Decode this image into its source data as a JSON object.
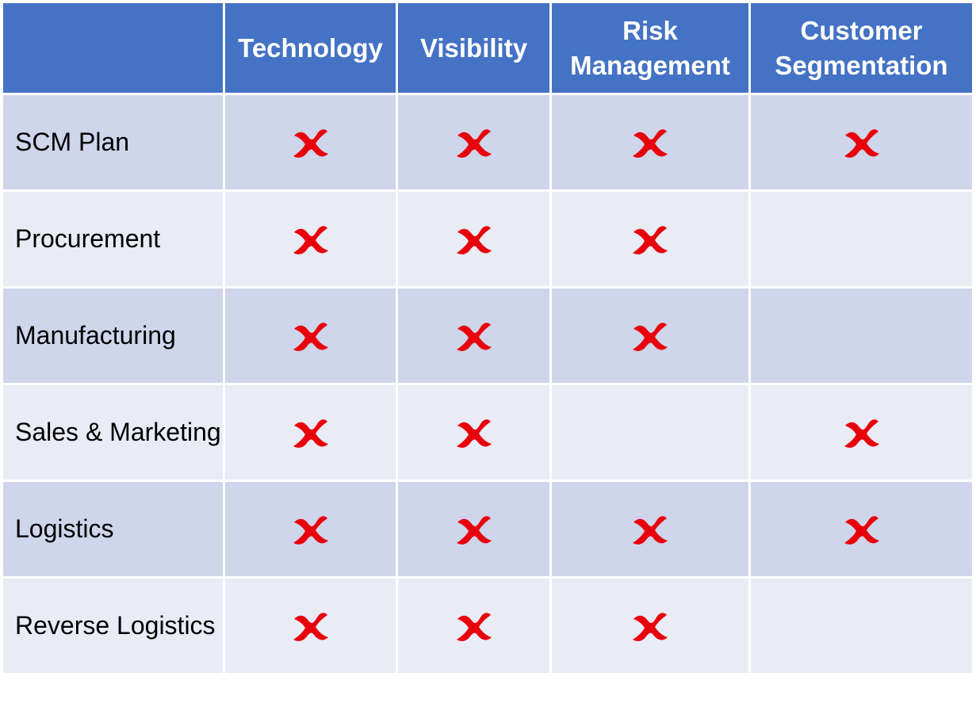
{
  "colors": {
    "header": "#4472c4",
    "row_dark": "#cfd5ea",
    "row_light": "#e9ebf5",
    "mark": "#e8000b"
  },
  "columns": [
    "Technology",
    "Visibility",
    "Risk Management",
    "Customer Segmentation"
  ],
  "rows": [
    {
      "label": "SCM Plan",
      "marks": [
        true,
        true,
        true,
        true
      ]
    },
    {
      "label": "Procurement",
      "marks": [
        true,
        true,
        true,
        false
      ]
    },
    {
      "label": "Manufacturing",
      "marks": [
        true,
        true,
        true,
        false
      ]
    },
    {
      "label": "Sales & Marketing",
      "marks": [
        true,
        true,
        false,
        true
      ]
    },
    {
      "label": "Logistics",
      "marks": [
        true,
        true,
        true,
        true
      ]
    },
    {
      "label": "Reverse Logistics",
      "marks": [
        true,
        true,
        true,
        false
      ]
    }
  ],
  "mark_icon": "red-x-mark-icon"
}
